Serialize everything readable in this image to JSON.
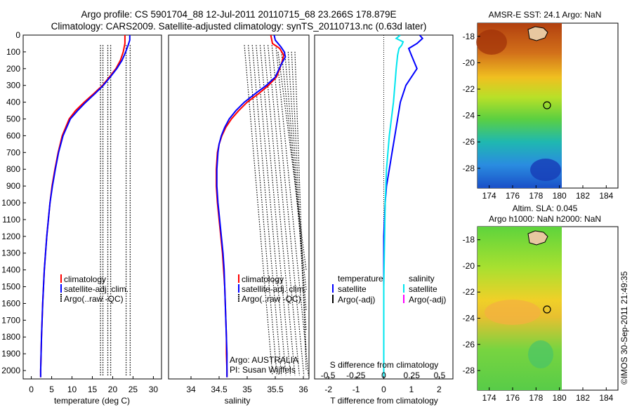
{
  "header": {
    "title_line1": "Argo profile: CS 5901704_88 12-Jul-2011 20110715_68 23.266S 178.879E",
    "title_line2": "Climatology: CARS2009. Satellite-adjusted climatology: synTS_20110713.nc (0.63d later)"
  },
  "colors": {
    "climatology": "#ff0000",
    "satellite": "#0000ff",
    "argo": "#000000",
    "sat_salinity": "#00e5ee",
    "argo_adj_salinity": "#ff00ff"
  },
  "chart_data": [
    {
      "type": "line",
      "xlabel": "temperature (deg C)",
      "ylabel": "",
      "xlim": [
        -2,
        32
      ],
      "ylim": [
        2050,
        0
      ],
      "x_ticks": [
        0,
        5,
        10,
        15,
        20,
        25,
        30
      ],
      "y_ticks": [
        0,
        100,
        200,
        300,
        400,
        500,
        600,
        700,
        800,
        900,
        1000,
        1100,
        1200,
        1300,
        1400,
        1500,
        1600,
        1700,
        1800,
        1900,
        2000
      ],
      "legend": [
        "climatology",
        "satellite-adj. clim.",
        "Argo(..raw -QC)"
      ],
      "legend_position": "lower-right",
      "series": [
        {
          "name": "climatology",
          "color": "#ff0000",
          "depth": [
            0,
            50,
            100,
            150,
            200,
            250,
            300,
            350,
            400,
            450,
            500,
            600,
            700,
            800,
            900,
            1000,
            1200,
            1400,
            1600,
            1800,
            2000,
            2040
          ],
          "values": [
            23.0,
            23.0,
            22.6,
            21.9,
            20.8,
            19.2,
            17.5,
            15.3,
            13.0,
            10.9,
            9.3,
            7.6,
            6.6,
            5.8,
            5.1,
            4.6,
            3.8,
            3.2,
            2.8,
            2.5,
            2.3,
            2.3
          ]
        },
        {
          "name": "satellite-adj. clim.",
          "color": "#0000ff",
          "depth": [
            0,
            30,
            60,
            100,
            150,
            200,
            250,
            300,
            350,
            400,
            450,
            500,
            600,
            700,
            800,
            900,
            1000,
            1200,
            1400,
            1600,
            1800,
            2000,
            2040
          ],
          "values": [
            24.2,
            24.2,
            23.8,
            23.2,
            22.3,
            21.0,
            19.4,
            17.7,
            15.6,
            13.4,
            11.4,
            9.6,
            7.8,
            6.7,
            5.9,
            5.2,
            4.6,
            3.8,
            3.2,
            2.8,
            2.5,
            2.3,
            2.3
          ]
        }
      ],
      "argo_levels_depth": [
        60,
        2030
      ],
      "argo_columns": [
        17,
        17.6,
        18.8,
        19.5,
        23.3,
        24.3
      ]
    },
    {
      "type": "line",
      "xlabel": "salinity",
      "ylabel": "",
      "xlim": [
        33.6,
        36.1
      ],
      "ylim": [
        2050,
        0
      ],
      "x_ticks": [
        34,
        34.5,
        35,
        35.5,
        36
      ],
      "x_tick_labels": [
        "34",
        "34.5",
        "35",
        "35.5",
        "36"
      ],
      "legend": [
        "climatology",
        "satellite-adj. clim.",
        "Argo(..raw -QC)"
      ],
      "legend_position": "lower-right",
      "annotation_line1": "Argo: AUSTRALIA",
      "annotation_line2": "PI: Susan Wijffels",
      "series": [
        {
          "name": "climatology",
          "color": "#ff0000",
          "depth": [
            0,
            50,
            80,
            120,
            160,
            200,
            250,
            300,
            350,
            400,
            450,
            500,
            550,
            600,
            650,
            700,
            800,
            900,
            1000,
            1100,
            1200,
            1300,
            1400,
            1500,
            1600,
            1700,
            1800,
            1900,
            2000,
            2040
          ],
          "values": [
            35.42,
            35.45,
            35.58,
            35.65,
            35.62,
            35.58,
            35.52,
            35.38,
            35.2,
            35.0,
            34.85,
            34.72,
            34.62,
            34.55,
            34.5,
            34.47,
            34.45,
            34.45,
            34.47,
            34.5,
            34.53,
            34.56,
            34.58,
            34.6,
            34.61,
            34.62,
            34.63,
            34.63,
            34.64,
            34.64
          ]
        },
        {
          "name": "satellite-adj. clim.",
          "color": "#0000ff",
          "depth": [
            0,
            30,
            70,
            100,
            130,
            160,
            200,
            250,
            300,
            350,
            400,
            450,
            500,
            550,
            600,
            650,
            700,
            800,
            900,
            1000,
            1100,
            1200,
            1300,
            1400,
            1500,
            1600,
            1700,
            1800,
            1900,
            2000,
            2040
          ],
          "values": [
            35.48,
            35.5,
            35.6,
            35.66,
            35.68,
            35.63,
            35.57,
            35.5,
            35.34,
            35.14,
            34.95,
            34.8,
            34.68,
            34.6,
            34.54,
            34.5,
            34.48,
            34.46,
            34.46,
            34.48,
            34.51,
            34.54,
            34.57,
            34.59,
            34.6,
            34.61,
            34.62,
            34.63,
            34.64,
            34.64,
            34.64
          ]
        }
      ]
    },
    {
      "type": "line",
      "xlabel": "T difference from climatology",
      "top_xlabel": "S difference from climatology",
      "xlim": [
        -2.5,
        2.5
      ],
      "x_ticks": [
        -2,
        -1,
        0,
        1,
        2
      ],
      "top_ticks": [
        -0.5,
        -0.25,
        0,
        0.25,
        0.5
      ],
      "top_tick_labels": [
        "-0.5",
        "-0.25",
        "0",
        "0.25",
        "0.5"
      ],
      "legend_temperature_title": "temperature",
      "legend_salinity_title": "salinity",
      "legend_temperature": [
        "satellite",
        "Argo(-adj)"
      ],
      "legend_salinity": [
        "satellite",
        "Argo(-adj)"
      ],
      "legend_position": "lower-center",
      "series": [
        {
          "name": "satellite",
          "color": "#0000ff",
          "depth": [
            0,
            20,
            50,
            80,
            120,
            200,
            300,
            400,
            500,
            600,
            700,
            800,
            900,
            1000,
            1200,
            1500,
            2040
          ],
          "values": [
            1.3,
            1.4,
            1.2,
            0.9,
            1.0,
            1.2,
            0.8,
            0.6,
            0.5,
            0.4,
            0.3,
            0.2,
            0.1,
            0.05,
            0,
            0,
            0
          ]
        },
        {
          "name": "satellite",
          "color": "#00e5ee",
          "depth": [
            0,
            20,
            40,
            60,
            80,
            120,
            200,
            300,
            400,
            600,
            800,
            1000,
            1500,
            2040
          ],
          "values": [
            0.6,
            0.45,
            0.7,
            0.65,
            0.55,
            0.5,
            0.45,
            0.4,
            0.35,
            0.2,
            0.1,
            0.05,
            0,
            0
          ]
        }
      ]
    },
    {
      "type": "heatmap",
      "title": "AMSR-E SST: 24.1  Argo: NaN",
      "xlim": [
        173,
        185
      ],
      "ylim": [
        -29.5,
        -17
      ],
      "x_ticks": [
        174,
        176,
        178,
        180,
        182,
        184
      ],
      "y_ticks": [
        -18,
        -20,
        -22,
        -24,
        -26,
        -28
      ],
      "argo_marker": [
        178.9,
        -23.3
      ]
    },
    {
      "type": "heatmap",
      "title_line1": "Altim. SLA: 0.045",
      "title_line2": "Argo h1000: NaN h2000: NaN",
      "xlim": [
        173,
        185
      ],
      "ylim": [
        -29.5,
        -17
      ],
      "x_ticks": [
        174,
        176,
        178,
        180,
        182,
        184
      ],
      "y_ticks": [
        -18,
        -20,
        -22,
        -24,
        -26,
        -28
      ],
      "argo_marker": [
        178.9,
        -23.3
      ]
    }
  ],
  "footer": {
    "side_label": "©IMOS 30-Sep-2011 21:49:35"
  }
}
